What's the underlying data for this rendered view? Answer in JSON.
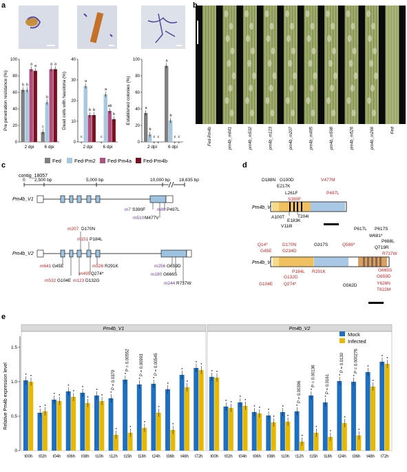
{
  "panel_labels": [
    "a",
    "b",
    "c",
    "d",
    "e"
  ],
  "colors": {
    "fed": "#808080",
    "pm2": "#a8c8e0",
    "pm4a": "#b05080",
    "pm4b": "#7a1020",
    "mock": "#1f6fc0",
    "infected": "#e6b800",
    "box_blue": "#a8c8e6",
    "exon_blue": "#9ec3e0",
    "domain_orange": "#f0c060",
    "domain_yellow": "#f7d98a",
    "mut_red": "#d0201e",
    "mut_purple": "#6a3aa0"
  },
  "panel_a": {
    "legend": [
      "Fed",
      "Fed-Pm2",
      "Fed-Pm4a",
      "Fed-Pm4b"
    ],
    "micrographs": [
      "micro-1",
      "micro-2",
      "micro-3"
    ],
    "chart_data": [
      {
        "type": "bar",
        "ylabel": "Pre penetration resistance (%)",
        "ylim": [
          0,
          100
        ],
        "yticks": [
          "0",
          "20",
          "40",
          "60",
          "80",
          "100"
        ],
        "categories": [
          "2 dpi",
          "6 dpi"
        ],
        "series": [
          {
            "name": "Fed",
            "values": [
              63,
              12
            ]
          },
          {
            "name": "Fed-Pm2",
            "values": [
              63,
              48
            ]
          },
          {
            "name": "Fed-Pm4a",
            "values": [
              88,
              88
            ]
          },
          {
            "name": "Fed-Pm4b",
            "values": [
              86,
              88
            ]
          }
        ],
        "letters": [
          [
            "b",
            "b",
            "a",
            "a"
          ],
          [
            "c",
            "b",
            "a",
            "a"
          ]
        ]
      },
      {
        "type": "bar",
        "ylabel": "Dead cells with haustoria (%)",
        "ylim": [
          0,
          40
        ],
        "yticks": [
          "0",
          "10",
          "20",
          "30",
          "40"
        ],
        "categories": [
          "2 dpi",
          "6 dpi"
        ],
        "series": [
          {
            "name": "Fed",
            "values": [
              0,
              0
            ]
          },
          {
            "name": "Fed-Pm2",
            "values": [
              27,
              23
            ]
          },
          {
            "name": "Fed-Pm4a",
            "values": [
              13,
              15
            ]
          },
          {
            "name": "Fed-Pm4b",
            "values": [
              13,
              11
            ]
          }
        ],
        "letters": [
          [
            "c",
            "a",
            "b",
            "b"
          ],
          [
            "c",
            "a",
            "ab",
            "b"
          ]
        ]
      },
      {
        "type": "bar",
        "ylabel": "Established colonies (%)",
        "ylim": [
          0,
          100
        ],
        "yticks": [
          "0",
          "20",
          "40",
          "60",
          "80",
          "100"
        ],
        "categories": [
          "2 dpi",
          "6 dpi"
        ],
        "series": [
          {
            "name": "Fed",
            "values": [
              35,
              92
            ]
          },
          {
            "name": "Fed-Pm2",
            "values": [
              9,
              26
            ]
          },
          {
            "name": "Fed-Pm4a",
            "values": [
              0,
              0
            ]
          },
          {
            "name": "Fed-Pm4b",
            "values": [
              0,
              0
            ]
          }
        ],
        "letters": [
          [
            "a",
            "b",
            "c",
            "c"
          ],
          [
            "a",
            "b",
            "c",
            "c"
          ]
        ]
      }
    ]
  },
  "panel_b": {
    "leaf_labels": [
      "Fed-Pm4b",
      "pm4b_m641",
      "pm4b_m532",
      "pm4b_m123",
      "pm4b_m207",
      "pm4b_m495",
      "pm4b_m598",
      "pm4b_m526",
      "pm4b_m266",
      "Fed"
    ]
  },
  "panel_c": {
    "contig": "contig_18057",
    "scale": [
      "0",
      "2,500 bp",
      "5,000 bp",
      "10,000 bp",
      "18,835 bp"
    ],
    "v1": "Pm4b_V1",
    "v2": "Pm4b_V2",
    "v1_muts": [
      {
        "m": "m7",
        "a": "S390F"
      },
      {
        "m": "m510",
        "a": "M477V"
      },
      {
        "m": "m89",
        "a": "P497L"
      }
    ],
    "v2_top": [
      {
        "m": "m207",
        "a": "D170N"
      },
      {
        "m": "m151",
        "a": "P184L"
      }
    ],
    "v2_muts": [
      {
        "m": "m641",
        "a": "G45E"
      },
      {
        "m": "m532",
        "a": "G104E"
      },
      {
        "m": "m123",
        "a": "D132G"
      },
      {
        "m": "m495",
        "a": "Q274*"
      },
      {
        "m": "m526",
        "a": "R291K"
      },
      {
        "m": "m256",
        "a": "G659D"
      },
      {
        "m": "m180",
        "a": "G666S"
      },
      {
        "m": "m244",
        "a": "R737W"
      }
    ]
  },
  "panel_d": {
    "v1": "Pm4b_V1",
    "v2": "Pm4b_V2",
    "v1_above": [
      "D188N",
      "G100D",
      "E217K",
      "L261F",
      "S390F",
      "V477M",
      "P497L"
    ],
    "v1_below": [
      "A100T",
      "E183K",
      "V118I",
      "T204I"
    ],
    "v2_above": [
      "Q14*",
      "G45E",
      "D170N",
      "G234D",
      "G317S",
      "Q588*",
      "P617L",
      "P617S",
      "W681*",
      "P688L",
      "Q719R",
      "R737W"
    ],
    "v2_below": [
      "P184L",
      "G132D",
      "G104E",
      "Q274*",
      "R291K",
      "G562D",
      "G665S",
      "G659D",
      "Y626N",
      "T622M"
    ]
  },
  "panel_e": {
    "legend_title": "",
    "legend": [
      "Mock",
      "Infected"
    ],
    "ylabel": "Relative Pm4b expression level",
    "yticks": [
      "0",
      "0.5",
      "1.0",
      "1.5"
    ],
    "facets": [
      "Pm4b_V1",
      "Pm4b_V2"
    ],
    "timepoints": [
      "t00h",
      "t02h",
      "t04h",
      "t06h",
      "t08h",
      "t10h",
      "t12h",
      "t15h",
      "t18h",
      "t24h",
      "t36h",
      "t48h",
      "t72h"
    ],
    "chart_data": [
      {
        "type": "bar",
        "title": "Pm4b_V1",
        "categories": [
          "t00h",
          "t02h",
          "t04h",
          "t06h",
          "t08h",
          "t10h",
          "t12h",
          "t15h",
          "t18h",
          "t24h",
          "t36h",
          "t48h",
          "t72h"
        ],
        "series": [
          {
            "name": "Mock",
            "values": [
              1.02,
              0.55,
              0.74,
              0.86,
              0.84,
              0.8,
              0.76,
              1.03,
              0.96,
              0.97,
              0.89,
              1.1,
              1.2
            ]
          },
          {
            "name": "Infected",
            "values": [
              1.0,
              0.57,
              0.72,
              0.78,
              0.69,
              0.72,
              0.23,
              0.26,
              0.33,
              0.55,
              0.3,
              0.92,
              1.17
            ]
          }
        ],
        "pvalues": [
          null,
          null,
          null,
          null,
          null,
          null,
          "P = 0.0379",
          "P = 0.00552",
          "P = 0.00993",
          "P = 0.00545",
          null,
          null,
          null
        ],
        "ylim": [
          0,
          1.6
        ]
      },
      {
        "type": "bar",
        "title": "Pm4b_V2",
        "categories": [
          "t00h",
          "t02h",
          "t04h",
          "t06h",
          "t08h",
          "t10h",
          "t12h",
          "t15h",
          "t18h",
          "t24h",
          "t36h",
          "t48h",
          "t72h"
        ],
        "series": [
          {
            "name": "Mock",
            "values": [
              1.07,
              0.64,
              0.7,
              0.56,
              0.51,
              0.56,
              0.57,
              0.8,
              0.7,
              1.01,
              1.0,
              1.14,
              1.29
            ]
          },
          {
            "name": "Infected",
            "values": [
              1.06,
              0.62,
              0.65,
              0.54,
              0.41,
              0.42,
              0.13,
              0.26,
              0.2,
              0.4,
              0.22,
              0.93,
              1.26
            ]
          }
        ],
        "pvalues": [
          null,
          null,
          null,
          null,
          null,
          null,
          "P = 0.00396",
          "P = 0.00136",
          "P = 0.0161",
          "P = 0.0130",
          "P = 0.000276",
          null,
          null
        ],
        "ylim": [
          0,
          1.6
        ]
      }
    ]
  }
}
